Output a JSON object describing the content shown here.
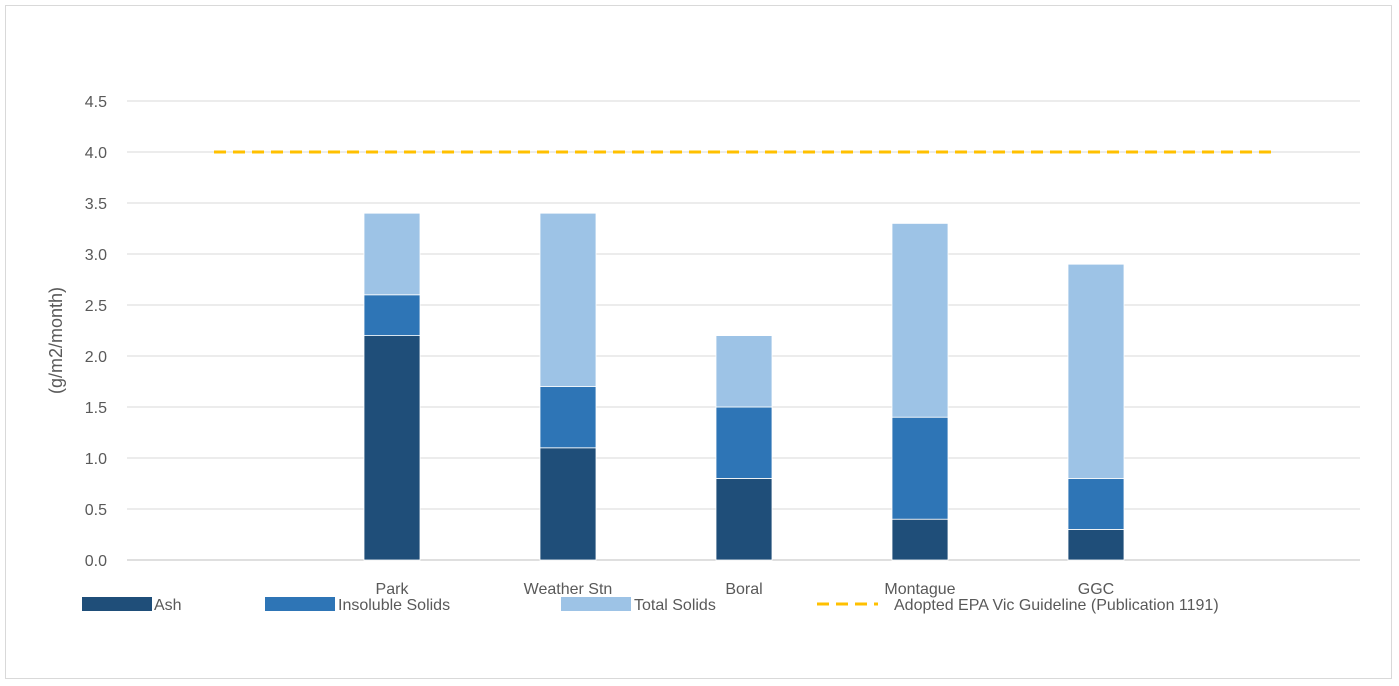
{
  "chart_data": {
    "type": "bar",
    "stacked": true,
    "title": "",
    "xlabel": "",
    "ylabel": "(g/m2/month)",
    "ylim": [
      0,
      4.5
    ],
    "yticks": [
      "0.0",
      "0.5",
      "1.0",
      "1.5",
      "2.0",
      "2.5",
      "3.0",
      "3.5",
      "4.0",
      "4.5"
    ],
    "grid": true,
    "legend_position": "bottom",
    "categories": [
      "Park",
      "Weather Stn",
      "Boral",
      "Montague",
      "GGC"
    ],
    "series": [
      {
        "name": "Ash",
        "color": "#1f4e79",
        "values": [
          2.2,
          1.1,
          0.8,
          0.4,
          0.3
        ]
      },
      {
        "name": "Insoluble Solids",
        "color": "#2e75b6",
        "values": [
          0.4,
          0.6,
          0.7,
          1.0,
          0.5
        ]
      },
      {
        "name": "Total Solids",
        "color": "#9dc3e6",
        "values": [
          0.8,
          1.7,
          0.7,
          1.9,
          2.1
        ]
      }
    ],
    "reference_line": {
      "name": "Adopted EPA Vic Guideline (Publication 1191)",
      "value": 4.0,
      "color": "#ffc000",
      "style": "dashed"
    }
  }
}
